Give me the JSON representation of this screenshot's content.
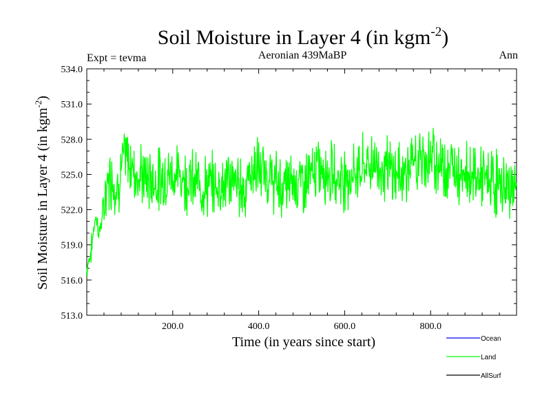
{
  "chart_data": {
    "type": "line",
    "title": "Soil Moisture in Layer 4 (in kgm",
    "title_superscript": "-2",
    "title_close": ")",
    "subtitle_left": "Expt = tevma",
    "subtitle_center": "Aeronian 439MaBP",
    "subtitle_right": "Ann",
    "xlabel": "Time (in years since start)",
    "ylabel": "Soil Moisture in Layer 4 (in kgm",
    "ylabel_superscript": "-2",
    "ylabel_close": ")",
    "xlim": [
      0,
      1000
    ],
    "ylim": [
      513,
      534
    ],
    "x_ticks": [
      200,
      400,
      600,
      800
    ],
    "x_tick_labels": [
      "200.0",
      "400.0",
      "600.0",
      "800.0"
    ],
    "y_ticks": [
      513,
      516,
      519,
      522,
      525,
      528,
      531,
      534
    ],
    "y_tick_labels": [
      "513.0",
      "516.0",
      "519.0",
      "522.0",
      "525.0",
      "528.0",
      "531.0",
      "534.0"
    ],
    "legend_position": "bottom-right",
    "legend": [
      {
        "name": "Ocean",
        "color": "#0000ff"
      },
      {
        "name": "Land",
        "color": "#00ff00"
      },
      {
        "name": "AllSurf",
        "color": "#000000"
      }
    ],
    "series": [
      {
        "name": "Land",
        "color": "#00ff00",
        "x_start": 0,
        "x_step": 10,
        "values": [
          517.0,
          518.5,
          521.5,
          520.0,
          522.5,
          524.5,
          525.0,
          523.5,
          525.5,
          526.5,
          526.0,
          525.5,
          525.0,
          524.8,
          524.6,
          524.5,
          524.5,
          524.6,
          524.8,
          525.0,
          525.0,
          525.0,
          524.8,
          524.6,
          524.5,
          524.3,
          524.2,
          524.0,
          524.0,
          524.0,
          524.0,
          524.2,
          524.3,
          524.5,
          524.5,
          524.3,
          524.0,
          523.8,
          525.0,
          525.5,
          525.5,
          525.0,
          524.8,
          524.6,
          524.2,
          524.0,
          524.0,
          524.2,
          524.5,
          524.5,
          524.3,
          524.4,
          524.8,
          525.2,
          525.5,
          525.5,
          525.3,
          525.0,
          524.9,
          524.8,
          524.8,
          524.8,
          525.0,
          525.3,
          525.6,
          525.8,
          526.0,
          526.0,
          525.8,
          525.6,
          525.4,
          525.2,
          525.0,
          525.0,
          525.2,
          525.5,
          525.8,
          526.0,
          526.2,
          526.3,
          526.3,
          526.2,
          526.0,
          525.8,
          525.6,
          525.5,
          525.5,
          525.4,
          525.3,
          525.2,
          525.0,
          524.8,
          524.6,
          524.5,
          524.4,
          524.3,
          524.2,
          524.0,
          523.9,
          523.8
        ]
      }
    ]
  }
}
